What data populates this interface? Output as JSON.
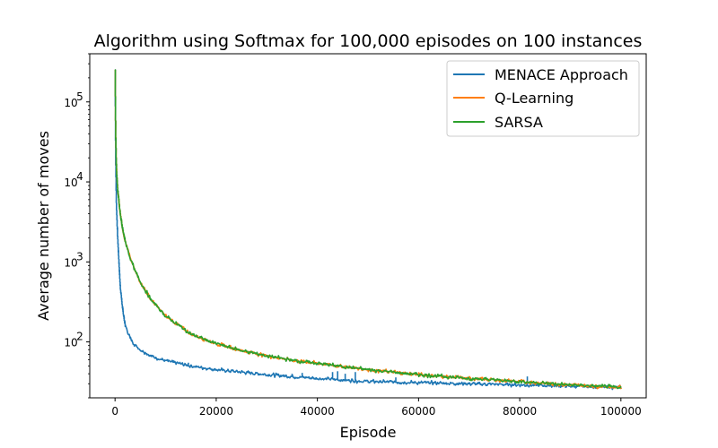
{
  "chart_data": {
    "type": "line",
    "title": "Algorithm using Softmax for 100,000 episodes on 100 instances",
    "xlabel": "Episode",
    "ylabel": "Average number of moves",
    "x_scale": "linear",
    "y_scale": "log",
    "xlim": [
      -5000,
      105000
    ],
    "ylim": [
      20,
      400000
    ],
    "xticks": [
      0,
      20000,
      40000,
      60000,
      80000,
      100000
    ],
    "xtick_labels": [
      "0",
      "20000",
      "40000",
      "60000",
      "80000",
      "100000"
    ],
    "yticks": [
      100,
      1000,
      10000,
      100000
    ],
    "ytick_labels": [
      "10",
      "10",
      "10",
      "10"
    ],
    "ytick_exponents": [
      "2",
      "3",
      "4",
      "5"
    ],
    "grid": false,
    "legend_position": "top-right",
    "series": [
      {
        "name": "MENACE Approach",
        "color": "#1f77b4",
        "points": [
          [
            0,
            250000
          ],
          [
            100,
            20000
          ],
          [
            250,
            5000
          ],
          [
            500,
            2000
          ],
          [
            1000,
            500
          ],
          [
            1500,
            250
          ],
          [
            2000,
            160
          ],
          [
            3000,
            110
          ],
          [
            4000,
            90
          ],
          [
            5000,
            80
          ],
          [
            7000,
            67
          ],
          [
            10000,
            58
          ],
          [
            15000,
            50
          ],
          [
            20000,
            45
          ],
          [
            25000,
            42
          ],
          [
            30000,
            39
          ],
          [
            35000,
            37
          ],
          [
            40000,
            35
          ],
          [
            50000,
            32
          ],
          [
            60000,
            31
          ],
          [
            70000,
            30
          ],
          [
            80000,
            29
          ],
          [
            90000,
            28
          ],
          [
            100000,
            27
          ]
        ],
        "spikes": [
          [
            14500,
            55
          ],
          [
            18000,
            47
          ],
          [
            35000,
            40
          ],
          [
            37000,
            41
          ],
          [
            43000,
            42
          ],
          [
            44000,
            43
          ],
          [
            45500,
            40
          ],
          [
            47500,
            42
          ],
          [
            55500,
            36
          ],
          [
            81500,
            37
          ]
        ]
      },
      {
        "name": "Q-Learning",
        "color": "#ff7f0e",
        "points": [
          [
            0,
            250000
          ],
          [
            100,
            40000
          ],
          [
            250,
            15000
          ],
          [
            500,
            8000
          ],
          [
            1000,
            4000
          ],
          [
            1500,
            2500
          ],
          [
            2000,
            1800
          ],
          [
            3000,
            1100
          ],
          [
            4000,
            750
          ],
          [
            5000,
            560
          ],
          [
            7000,
            340
          ],
          [
            10000,
            210
          ],
          [
            15000,
            125
          ],
          [
            20000,
            95
          ],
          [
            25000,
            78
          ],
          [
            30000,
            67
          ],
          [
            35000,
            59
          ],
          [
            40000,
            54
          ],
          [
            50000,
            45
          ],
          [
            60000,
            39
          ],
          [
            70000,
            35
          ],
          [
            80000,
            32
          ],
          [
            90000,
            29
          ],
          [
            100000,
            27
          ]
        ]
      },
      {
        "name": "SARSA",
        "color": "#2ca02c",
        "points": [
          [
            0,
            250000
          ],
          [
            100,
            40000
          ],
          [
            250,
            15000
          ],
          [
            500,
            8000
          ],
          [
            1000,
            4000
          ],
          [
            1500,
            2500
          ],
          [
            2000,
            1800
          ],
          [
            3000,
            1100
          ],
          [
            4000,
            750
          ],
          [
            5000,
            560
          ],
          [
            7000,
            340
          ],
          [
            10000,
            210
          ],
          [
            15000,
            125
          ],
          [
            20000,
            95
          ],
          [
            25000,
            78
          ],
          [
            30000,
            67
          ],
          [
            35000,
            59
          ],
          [
            40000,
            54
          ],
          [
            50000,
            45
          ],
          [
            60000,
            39
          ],
          [
            70000,
            35
          ],
          [
            80000,
            32
          ],
          [
            90000,
            29
          ],
          [
            100000,
            27
          ]
        ]
      }
    ]
  }
}
